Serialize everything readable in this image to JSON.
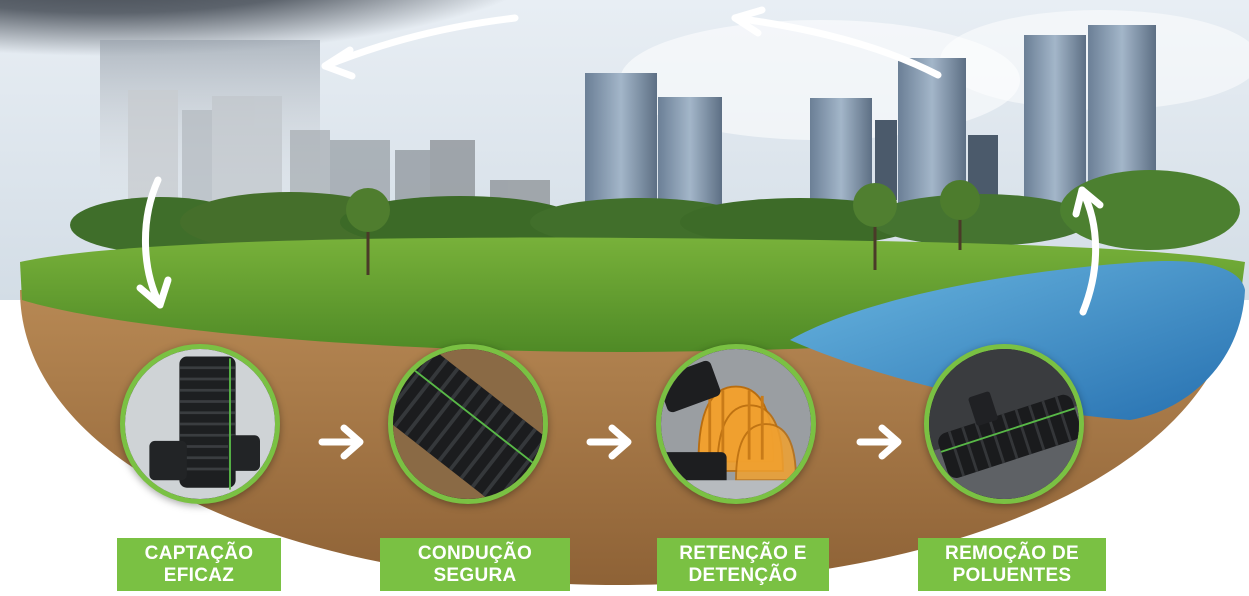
{
  "steps": [
    {
      "icon": "vertical-tee-pipe-icon",
      "line1": "CAPTAÇÃO",
      "line2": "EFICAZ"
    },
    {
      "icon": "corrugated-pipe-icon",
      "line1": "CONDUÇÃO",
      "line2": "SEGURA"
    },
    {
      "icon": "retention-chambers-icon",
      "line1": "RETENÇÃO E",
      "line2": "DETENÇÃO"
    },
    {
      "icon": "pollutant-separator-icon",
      "line1": "REMOÇÃO DE",
      "line2": "POLUENTES"
    }
  ],
  "colors": {
    "accent": "#7ac143",
    "label_text": "#ffffff",
    "sky": "#c9d9e8",
    "storm": "#3a3f47",
    "grass": "#5f9a2e",
    "soil": "#a8794a",
    "water": "#3f8fc8"
  },
  "cycle_arrows": [
    "rain-arrow-icon",
    "evaporation-arrow-icon",
    "runoff-arrow-icon",
    "return-arrow-icon"
  ]
}
